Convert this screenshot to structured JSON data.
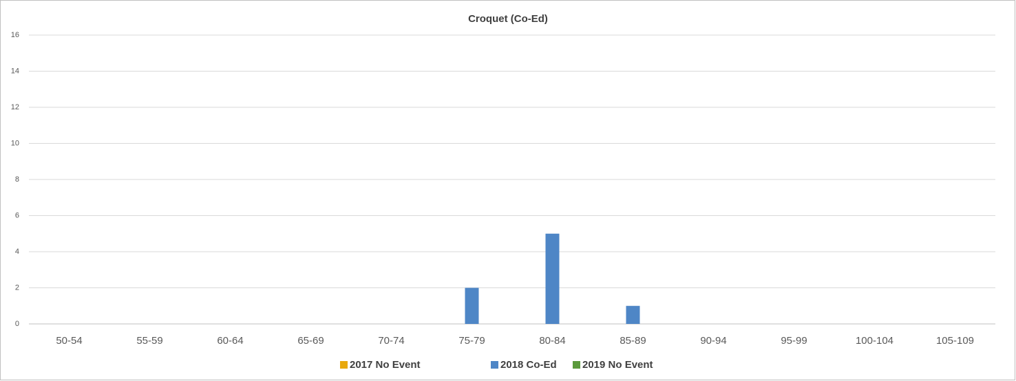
{
  "chart_data": {
    "type": "bar",
    "title": "Croquet (Co-Ed)",
    "categories": [
      "50-54",
      "55-59",
      "60-64",
      "65-69",
      "70-74",
      "75-79",
      "80-84",
      "85-89",
      "90-94",
      "95-99",
      "100-104",
      "105-109"
    ],
    "series": [
      {
        "name": "2017 No Event",
        "color": "#e8a90e",
        "values": [
          null,
          null,
          null,
          null,
          null,
          null,
          null,
          null,
          null,
          null,
          null,
          null
        ]
      },
      {
        "name": "2018 Co-Ed",
        "color": "#4e86c6",
        "values": [
          null,
          null,
          null,
          null,
          null,
          2,
          5,
          1,
          null,
          null,
          null,
          null
        ]
      },
      {
        "name": "2019 No Event",
        "color": "#5b9a3c",
        "values": [
          null,
          null,
          null,
          null,
          null,
          null,
          null,
          null,
          null,
          null,
          null,
          null
        ]
      }
    ],
    "ylim": [
      0,
      16
    ],
    "yticks": [
      0,
      2,
      4,
      6,
      8,
      10,
      12,
      14,
      16
    ],
    "grid": true,
    "legend": "bottom"
  }
}
